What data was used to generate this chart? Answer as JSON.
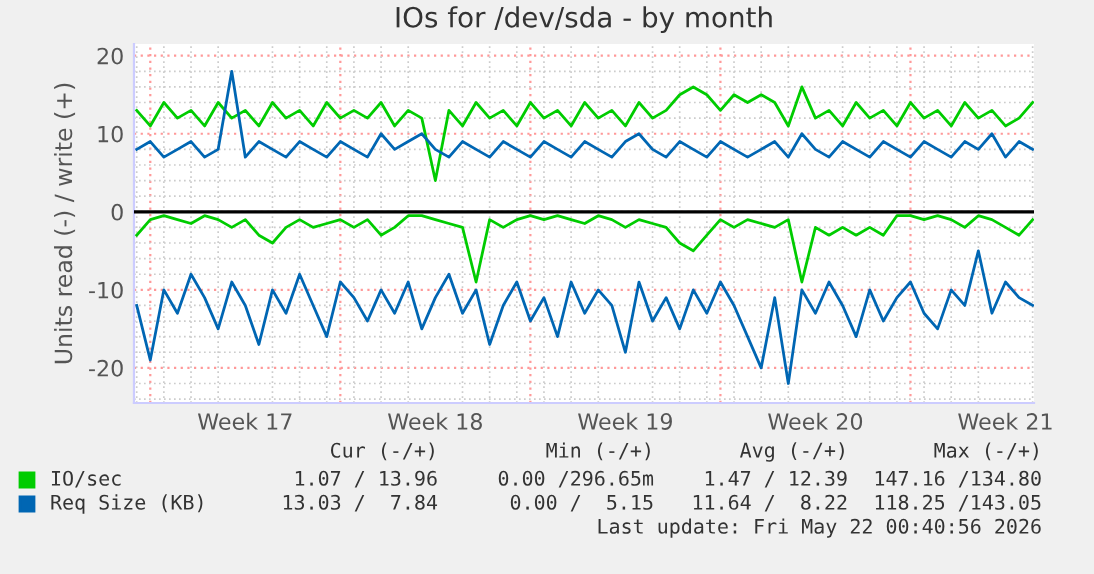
{
  "chart_data": {
    "type": "line",
    "title": "IOs for /dev/sda - by month",
    "ylabel": "Units read (-) / write (+)",
    "categories": [
      null,
      null,
      null,
      null,
      null,
      null,
      null,
      null,
      "Week 17",
      null,
      null,
      null,
      null,
      null,
      null,
      null,
      null,
      null,
      null,
      null,
      null,
      null,
      "Week 18",
      null,
      null,
      null,
      null,
      null,
      null,
      null,
      null,
      null,
      null,
      null,
      null,
      null,
      "Week 19",
      null,
      null,
      null,
      null,
      null,
      null,
      null,
      null,
      null,
      null,
      null,
      null,
      null,
      "Week 20",
      null,
      null,
      null,
      null,
      null,
      null,
      null,
      null,
      null,
      null,
      null,
      null,
      null,
      "Week 21",
      null,
      null
    ],
    "ylim": [
      -24.5,
      21.5
    ],
    "yticks": [
      -20,
      -10,
      0,
      10,
      20
    ],
    "grid": true,
    "legend": "bottom",
    "ref_lines": [
      {
        "axis": "y",
        "value": 0,
        "label": null,
        "color": "#000000"
      }
    ],
    "series": [
      {
        "name": "IO/sec",
        "color": "#00cc00",
        "values": [
          13,
          11,
          14,
          12,
          13,
          11,
          14,
          12,
          13,
          11,
          14,
          12,
          13,
          11,
          14,
          12,
          13,
          12,
          14,
          11,
          13,
          12,
          4,
          13,
          11,
          14,
          12,
          13,
          11,
          14,
          12,
          13,
          11,
          14,
          12,
          13,
          11,
          14,
          12,
          13,
          15,
          16,
          15,
          13,
          15,
          14,
          15,
          14,
          11,
          16,
          12,
          13,
          11,
          14,
          12,
          13,
          11,
          14,
          12,
          13,
          11,
          14,
          12,
          13,
          11,
          12,
          14
        ]
      },
      {
        "color": "#00cc00",
        "values": [
          -3,
          -1,
          -0.5,
          -1,
          -1.5,
          -0.5,
          -1,
          -2,
          -1,
          -3,
          -4,
          -2,
          -1,
          -2,
          -1.5,
          -1,
          -2,
          -1,
          -3,
          -2,
          -0.5,
          -0.5,
          -1,
          -1.5,
          -2,
          -9,
          -1,
          -2,
          -1,
          -0.5,
          -1,
          -0.5,
          -1,
          -1.5,
          -0.5,
          -1,
          -2,
          -1,
          -1.5,
          -2,
          -4,
          -5,
          -3,
          -1,
          -2,
          -1,
          -1.5,
          -2,
          -1,
          -9,
          -2,
          -3,
          -2,
          -3,
          -2,
          -3,
          -0.5,
          -0.5,
          -1,
          -0.5,
          -1,
          -2,
          -0.5,
          -1,
          -2,
          -3,
          -1
        ]
      },
      {
        "name": "Req Size (KB)",
        "color": "#0066b3",
        "values": [
          8,
          9,
          7,
          8,
          9,
          7,
          8,
          18,
          7,
          9,
          8,
          7,
          9,
          8,
          7,
          9,
          8,
          7,
          10,
          8,
          9,
          10,
          8,
          7,
          9,
          8,
          7,
          9,
          8,
          7,
          9,
          8,
          7,
          9,
          8,
          7,
          9,
          10,
          8,
          7,
          9,
          8,
          7,
          9,
          8,
          7,
          8,
          9,
          7,
          10,
          8,
          7,
          9,
          8,
          7,
          9,
          8,
          7,
          9,
          8,
          7,
          9,
          8,
          10,
          7,
          9,
          8
        ]
      },
      {
        "color": "#0066b3",
        "values": [
          -12,
          -19,
          -10,
          -13,
          -8,
          -11,
          -15,
          -9,
          -12,
          -17,
          -10,
          -13,
          -8,
          -12,
          -16,
          -9,
          -11,
          -14,
          -10,
          -13,
          -9,
          -15,
          -11,
          -8,
          -13,
          -10,
          -17,
          -12,
          -9,
          -14,
          -11,
          -16,
          -9,
          -13,
          -10,
          -12,
          -18,
          -9,
          -14,
          -11,
          -15,
          -10,
          -13,
          -9,
          -12,
          -16,
          -20,
          -11,
          -22,
          -10,
          -13,
          -9,
          -12,
          -16,
          -10,
          -14,
          -11,
          -9,
          -13,
          -15,
          -10,
          -12,
          -5,
          -13,
          -9,
          -11,
          -12
        ]
      }
    ],
    "annotations": [
      "Cur (-/+)",
      "Min (-/+)",
      "Avg (-/+)",
      "Max (-/+)",
      "1.07 / 13.96",
      "0.00 /296.65m",
      "1.47 / 12.39",
      "147.16 /134.80",
      "13.03 /  7.84",
      "0.00 /  5.15",
      "11.64 /  8.22",
      "118.25 /143.05",
      "Last update: Fri May 22 00:40:56 2026"
    ]
  }
}
